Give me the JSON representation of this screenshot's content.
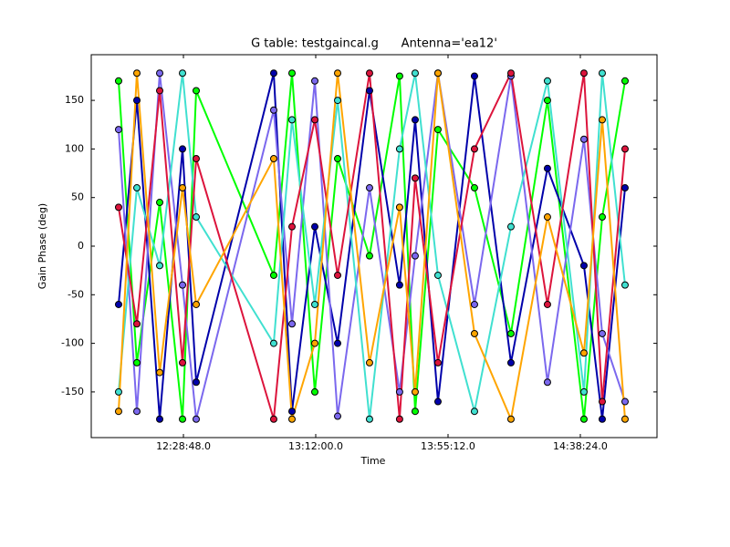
{
  "chart_data": {
    "type": "line",
    "title": "G table: testgaincal.g      Antenna='ea12'",
    "x_label": "Time",
    "y_label": "Gain Phase (deg)",
    "x": [
      43658,
      44016,
      44463,
      44910,
      45178,
      46697,
      47055,
      47502,
      47949,
      48574,
      49163,
      49468,
      49915,
      50630,
      51345,
      52060,
      52775,
      53133,
      53580
    ],
    "series": [
      {
        "color": "#00ff00",
        "values": [
          170,
          -120,
          45,
          -178,
          160,
          -30,
          178,
          -150,
          90,
          -10,
          175,
          -170,
          120,
          60,
          -90,
          150,
          -178,
          30,
          170
        ]
      },
      {
        "color": "#0000aa",
        "values": [
          -60,
          150,
          -178,
          100,
          -140,
          178,
          -170,
          20,
          -100,
          160,
          -40,
          130,
          -160,
          175,
          -120,
          80,
          -20,
          -178,
          60
        ]
      },
      {
        "color": "#7b68ee",
        "values": [
          120,
          -170,
          178,
          -40,
          -178,
          140,
          -80,
          170,
          -175,
          60,
          -150,
          -10,
          178,
          -60,
          175,
          -140,
          110,
          -90,
          -160
        ]
      },
      {
        "color": "#40e0d0",
        "values": [
          -150,
          60,
          -20,
          178,
          30,
          -100,
          130,
          -60,
          150,
          -178,
          100,
          178,
          -30,
          -170,
          20,
          170,
          -150,
          178,
          -40
        ]
      },
      {
        "color": "#dc143c",
        "values": [
          40,
          -80,
          160,
          -120,
          90,
          -178,
          20,
          130,
          -30,
          178,
          -178,
          70,
          -120,
          100,
          178,
          -60,
          178,
          -160,
          100
        ]
      },
      {
        "color": "#ffa500",
        "values": [
          -170,
          178,
          -130,
          60,
          -60,
          90,
          -178,
          -100,
          178,
          -120,
          40,
          -150,
          178,
          -90,
          -178,
          30,
          -110,
          130,
          -178
        ]
      }
    ],
    "xlim": [
      43122,
      54206
    ],
    "ylim": [
      -197,
      197
    ],
    "xticks": [
      {
        "value": 44928,
        "label": "12:28:48.0"
      },
      {
        "value": 47520,
        "label": "13:12:00.0"
      },
      {
        "value": 50112,
        "label": "13:55:12.0"
      },
      {
        "value": 52704,
        "label": "14:38:24.0"
      }
    ],
    "yticks": [
      -150,
      -100,
      -50,
      0,
      50,
      100,
      150
    ]
  }
}
